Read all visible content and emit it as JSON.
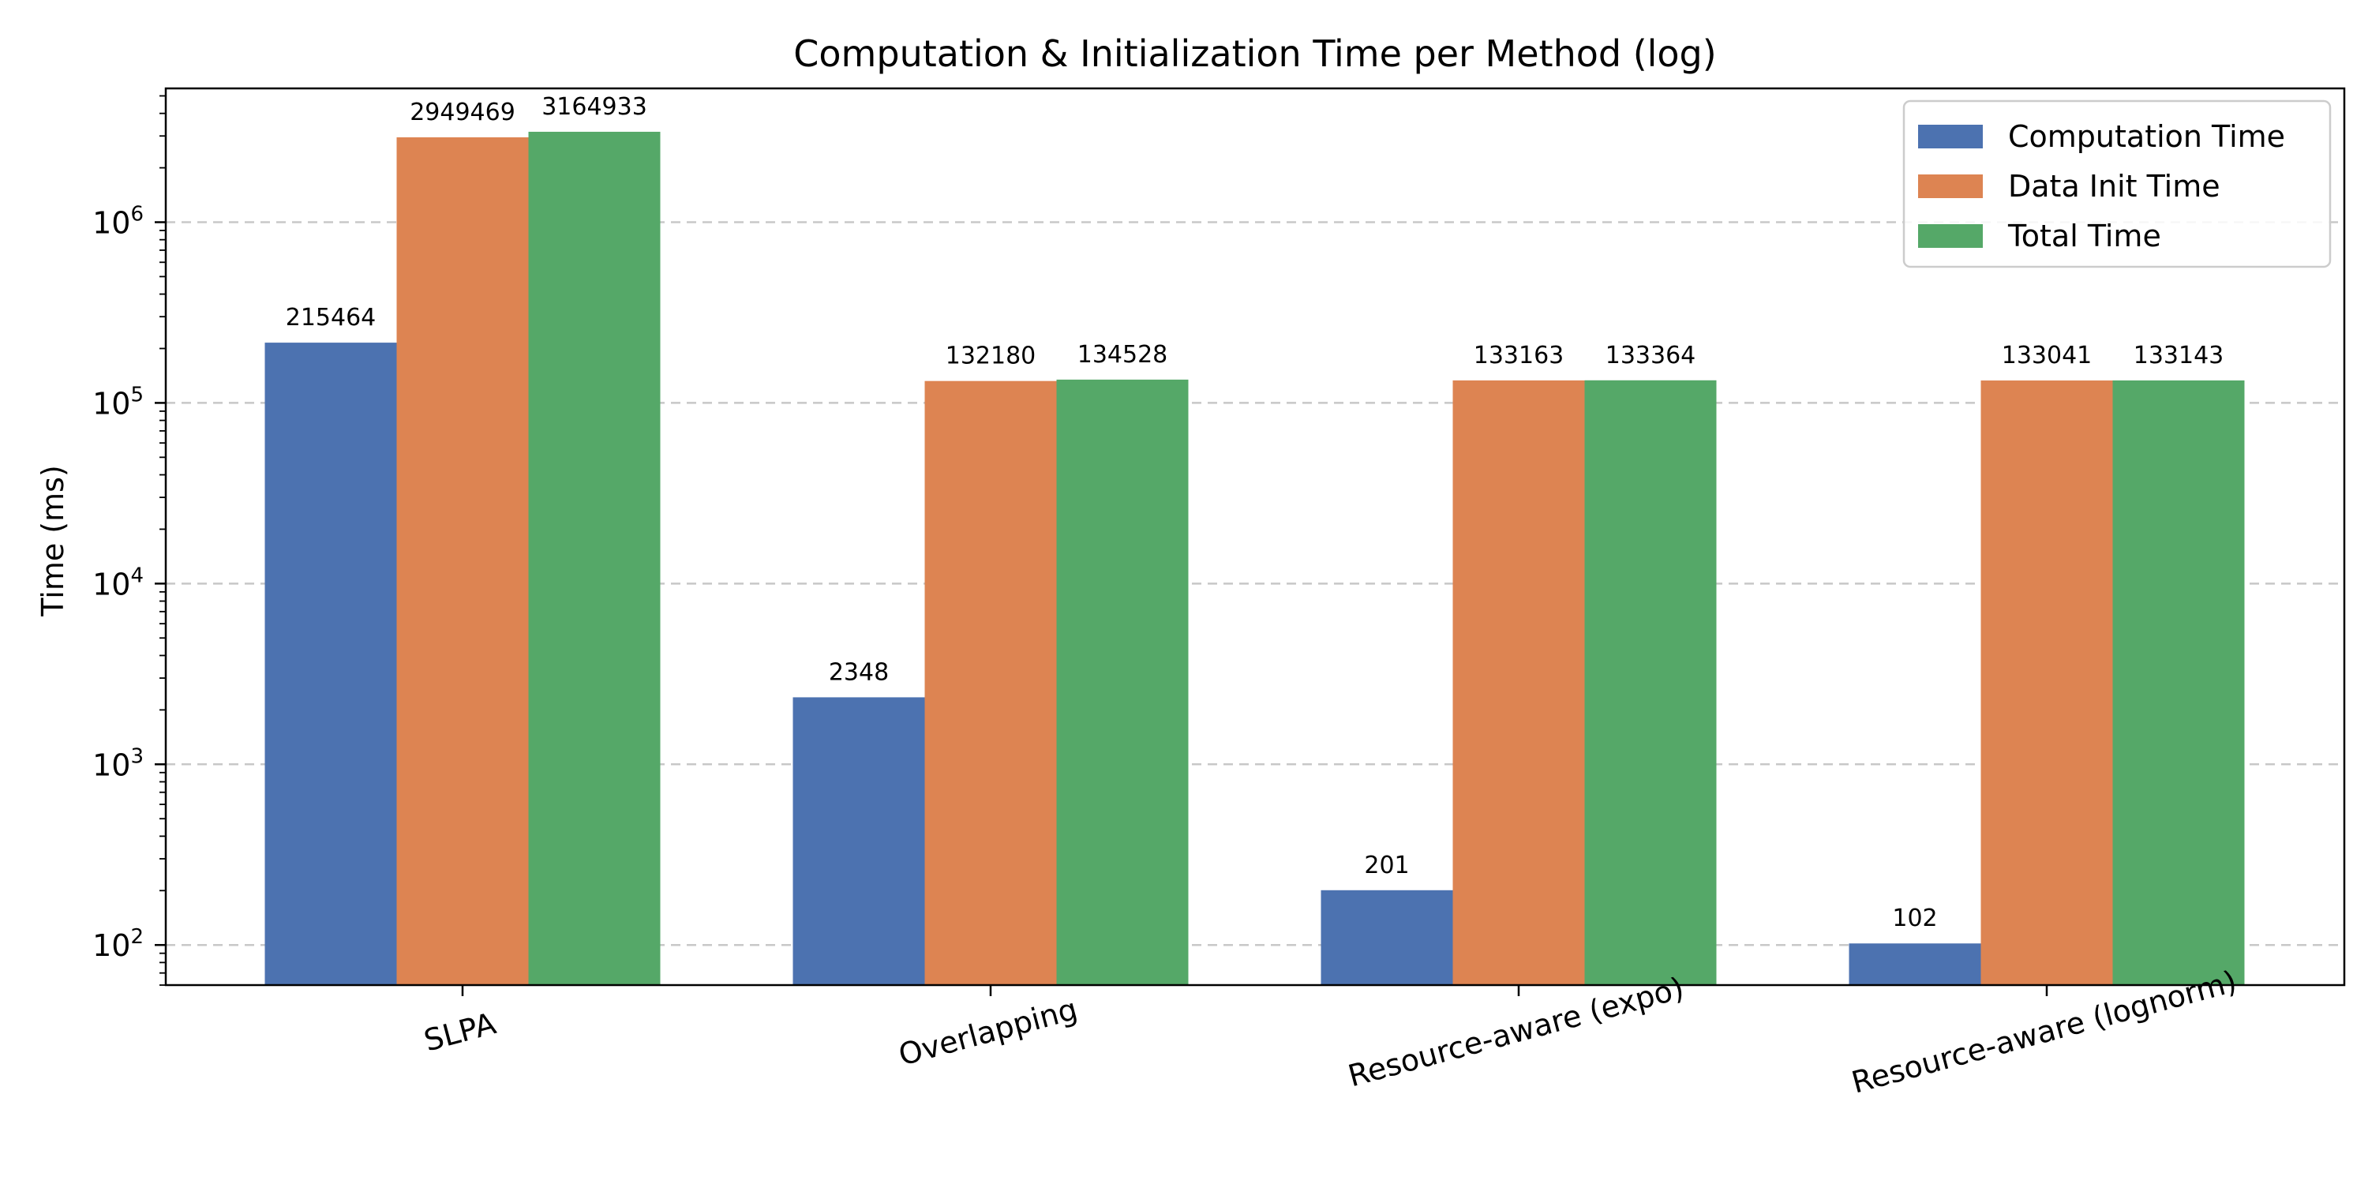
{
  "chart_data": {
    "type": "bar",
    "title": "Computation & Initialization Time per Method (log)",
    "xlabel": "",
    "ylabel": "Time (ms)",
    "yscale": "log",
    "ylim": [
      60,
      5500000
    ],
    "yticks": [
      {
        "value": 100,
        "base": "10",
        "exp": "2"
      },
      {
        "value": 1000,
        "base": "10",
        "exp": "3"
      },
      {
        "value": 10000,
        "base": "10",
        "exp": "4"
      },
      {
        "value": 100000,
        "base": "10",
        "exp": "5"
      },
      {
        "value": 1000000,
        "base": "10",
        "exp": "6"
      }
    ],
    "grid": "y-dashed",
    "legend_position": "top-right",
    "categories": [
      "SLPA",
      "Overlapping",
      "Resource-aware (expo)",
      "Resource-aware (lognorm)"
    ],
    "series": [
      {
        "name": "Computation Time",
        "color": "#4c72b0",
        "values": [
          215464,
          2348,
          201,
          102
        ]
      },
      {
        "name": "Data Init Time",
        "color": "#dd8452",
        "values": [
          2949469,
          132180,
          133163,
          133041
        ]
      },
      {
        "name": "Total Time",
        "color": "#55a868",
        "values": [
          3164933,
          134528,
          133364,
          133143
        ]
      }
    ]
  }
}
